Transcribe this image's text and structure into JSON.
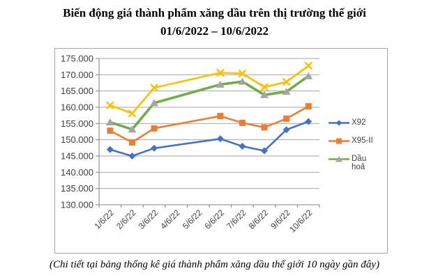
{
  "title": "Biến động giá thành phẩm xăng dầu trên thị trường thế giới",
  "subtitle": "01/6/2022 – 10/6/2022",
  "footer_note": "(Chi tiết tại bảng thống kê giá thành phẩm xăng dầu thế giới 10 ngày gần đây)",
  "chart_data": {
    "type": "line",
    "title": "Biến động giá thành phẩm xăng dầu trên thị trường thế giới 01/6/2022 – 10/6/2022",
    "categories": [
      "1/6/22",
      "2/6/22",
      "3/6/22",
      "4/6/22",
      "5/6/22",
      "6/6/22",
      "7/6/22",
      "8/6/22",
      "9/6/22",
      "10/6/22"
    ],
    "xlabel": "",
    "ylabel": "",
    "ylim": [
      130,
      175
    ],
    "y_step": 5,
    "y_tick_labels": [
      "130.000",
      "135.000",
      "140.000",
      "145.000",
      "150.000",
      "155.000",
      "160.000",
      "165.000",
      "170.000",
      "175.000"
    ],
    "grid": true,
    "legend_position": "right",
    "legend_entries": [
      "X92",
      "X95-II",
      "Dầu hoả"
    ],
    "colors": {
      "grid": "#a6a6a6",
      "axis": "#808080",
      "text": "#404040",
      "x92": "#4472C4",
      "x95": "#ED7D31",
      "dau_hoa_line": "#70AD47",
      "dau_hoa_marker": "#A5A5A5",
      "unlabeled_yellow": "#FFC000"
    },
    "series": [
      {
        "name": "X92",
        "color": "#4472C4",
        "marker": "diamond",
        "marker_color": "#4472C4",
        "in_legend": true,
        "values": [
          147.0,
          145.0,
          147.4,
          null,
          null,
          150.3,
          148.0,
          146.6,
          153.1,
          155.6
        ]
      },
      {
        "name": "X95-II",
        "color": "#ED7D31",
        "marker": "square",
        "marker_color": "#ED7D31",
        "in_legend": true,
        "values": [
          152.8,
          149.2,
          153.5,
          null,
          null,
          157.3,
          155.2,
          153.8,
          156.5,
          160.3
        ]
      },
      {
        "name": "Dầu hoả",
        "color": "#70AD47",
        "marker": "triangle",
        "marker_color": "#A5A5A5",
        "in_legend": true,
        "values": [
          155.4,
          153.2,
          161.3,
          null,
          null,
          167.0,
          167.9,
          163.8,
          164.8,
          169.6
        ]
      },
      {
        "name": "",
        "color": "#FFC000",
        "marker": "x",
        "marker_color": "#FFC000",
        "in_legend": false,
        "values": [
          160.6,
          158.1,
          166.0,
          null,
          null,
          170.6,
          170.4,
          166.2,
          167.8,
          172.8
        ]
      }
    ]
  }
}
